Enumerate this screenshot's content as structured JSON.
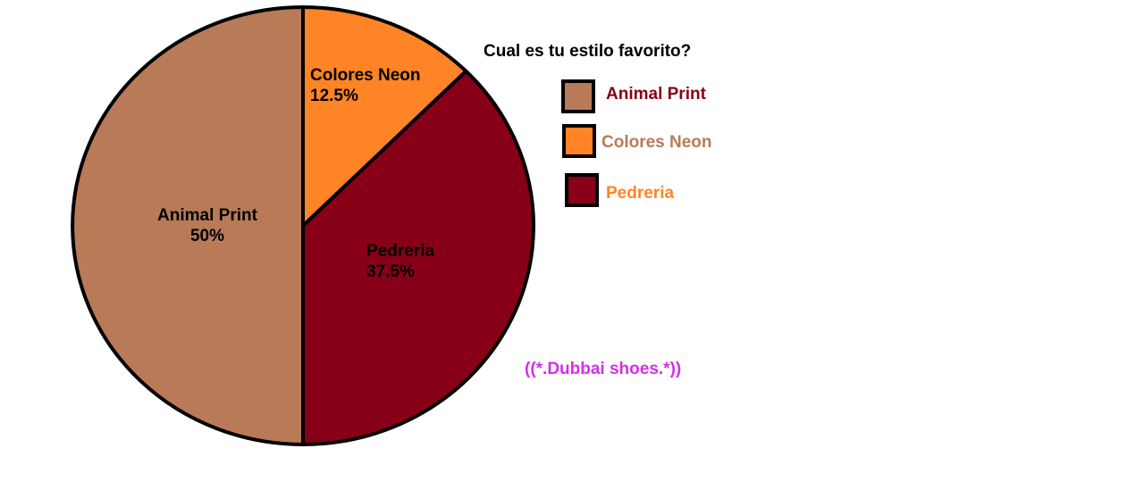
{
  "chart_data": {
    "type": "pie",
    "title": "Cual es tu estilo favorito?",
    "slices": [
      {
        "label": "Colores Neon",
        "value": 12.5,
        "value_label": "12.5%",
        "color": "#ff8426",
        "legend_text_color": "#b97a57"
      },
      {
        "label": "Pedreria",
        "value": 37.5,
        "value_label": "37.5%",
        "color": "#870017",
        "legend_text_color": "#ff8426"
      },
      {
        "label": "Animal Print",
        "value": 50,
        "value_label": "50%",
        "color": "#b97a57",
        "legend_text_color": "#870017"
      }
    ],
    "legend_order": [
      "Animal Print",
      "Colores Neon",
      "Pedreria"
    ],
    "legend_placement": "right",
    "start_angle": "top, clockwise",
    "annotation": "((*.Dubbai shoes.*))",
    "annotation_color": "#d42fe8"
  }
}
